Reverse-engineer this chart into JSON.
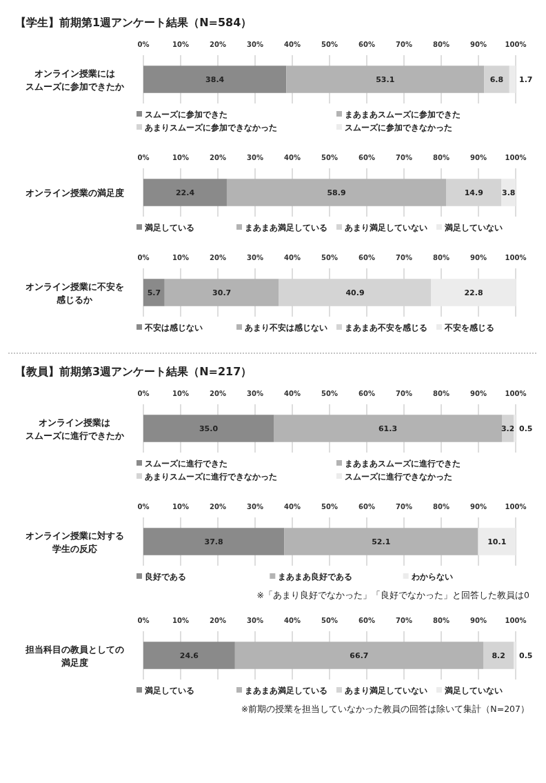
{
  "chart_data": [
    {
      "type": "bar",
      "orientation": "horizontal",
      "stacked": true,
      "title": "【学生】前期第1週アンケート結果（N=584）",
      "categories": [
        "オンライン授業にはスムーズに参加できたか"
      ],
      "xlim": [
        0,
        100
      ],
      "xticks": [
        {
          "value": 0,
          "label": "0%"
        },
        {
          "value": 10,
          "label": "10%"
        },
        {
          "value": 20,
          "label": "20%"
        },
        {
          "value": 30,
          "label": "30%"
        },
        {
          "value": 40,
          "label": "40%"
        },
        {
          "value": 50,
          "label": "50%"
        },
        {
          "value": 60,
          "label": "60%"
        },
        {
          "value": 70,
          "label": "70%"
        },
        {
          "value": 80,
          "label": "80%"
        },
        {
          "value": 90,
          "label": "90%"
        },
        {
          "value": 100,
          "label": "100%"
        }
      ],
      "grid": "x",
      "legend": "bottom",
      "series": [
        {
          "name": "スムーズに参加できた",
          "color": "#8a8a8a",
          "values": [
            38.4
          ],
          "value_labels": [
            "38.4"
          ]
        },
        {
          "name": "まあまあスムーズに参加できた",
          "color": "#b3b3b3",
          "values": [
            53.1
          ],
          "value_labels": [
            "53.1"
          ]
        },
        {
          "name": "あまりスムーズに参加できなかった",
          "color": "#d4d4d4",
          "values": [
            6.8
          ],
          "value_labels": [
            "6.8"
          ]
        },
        {
          "name": "スムーズに参加できなかった",
          "color": "#ececec",
          "values": [
            1.7
          ],
          "value_labels": [
            "1.7"
          ]
        }
      ]
    },
    {
      "type": "bar",
      "orientation": "horizontal",
      "stacked": true,
      "categories": [
        "オンライン授業の満足度"
      ],
      "xlim": [
        0,
        100
      ],
      "xticks": [
        {
          "value": 0,
          "label": "0%"
        },
        {
          "value": 10,
          "label": "10%"
        },
        {
          "value": 20,
          "label": "20%"
        },
        {
          "value": 30,
          "label": "30%"
        },
        {
          "value": 40,
          "label": "40%"
        },
        {
          "value": 50,
          "label": "50%"
        },
        {
          "value": 60,
          "label": "60%"
        },
        {
          "value": 70,
          "label": "70%"
        },
        {
          "value": 80,
          "label": "80%"
        },
        {
          "value": 90,
          "label": "90%"
        },
        {
          "value": 100,
          "label": "100%"
        }
      ],
      "grid": "x",
      "legend": "bottom",
      "series": [
        {
          "name": "満足している",
          "color": "#8a8a8a",
          "values": [
            22.4
          ],
          "value_labels": [
            "22.4"
          ]
        },
        {
          "name": "まあまあ満足している",
          "color": "#b3b3b3",
          "values": [
            58.9
          ],
          "value_labels": [
            "58.9"
          ]
        },
        {
          "name": "あまり満足していない",
          "color": "#d4d4d4",
          "values": [
            14.9
          ],
          "value_labels": [
            "14.9"
          ]
        },
        {
          "name": "満足していない",
          "color": "#ececec",
          "values": [
            3.8
          ],
          "value_labels": [
            "3.8"
          ]
        }
      ]
    },
    {
      "type": "bar",
      "orientation": "horizontal",
      "stacked": true,
      "categories": [
        "オンライン授業に不安を感じるか"
      ],
      "xlim": [
        0,
        100
      ],
      "xticks": [
        {
          "value": 0,
          "label": "0%"
        },
        {
          "value": 10,
          "label": "10%"
        },
        {
          "value": 20,
          "label": "20%"
        },
        {
          "value": 30,
          "label": "30%"
        },
        {
          "value": 40,
          "label": "40%"
        },
        {
          "value": 50,
          "label": "50%"
        },
        {
          "value": 60,
          "label": "60%"
        },
        {
          "value": 70,
          "label": "70%"
        },
        {
          "value": 80,
          "label": "80%"
        },
        {
          "value": 90,
          "label": "90%"
        },
        {
          "value": 100,
          "label": "100%"
        }
      ],
      "grid": "x",
      "legend": "bottom",
      "series": [
        {
          "name": "不安は感じない",
          "color": "#8a8a8a",
          "values": [
            5.7
          ],
          "value_labels": [
            "5.7"
          ]
        },
        {
          "name": "あまり不安は感じない",
          "color": "#b3b3b3",
          "values": [
            30.7
          ],
          "value_labels": [
            "30.7"
          ]
        },
        {
          "name": "まあまあ不安を感じる",
          "color": "#d4d4d4",
          "values": [
            40.9
          ],
          "value_labels": [
            "40.9"
          ]
        },
        {
          "name": "不安を感じる",
          "color": "#ececec",
          "values": [
            22.8
          ],
          "value_labels": [
            "22.8"
          ]
        }
      ]
    },
    {
      "type": "bar",
      "orientation": "horizontal",
      "stacked": true,
      "title": "【教員】前期第3週アンケート結果（N=217）",
      "categories": [
        "オンライン授業はスムーズに進行できたか"
      ],
      "xlim": [
        0,
        100
      ],
      "xticks": [
        {
          "value": 0,
          "label": "0%"
        },
        {
          "value": 10,
          "label": "10%"
        },
        {
          "value": 20,
          "label": "20%"
        },
        {
          "value": 30,
          "label": "30%"
        },
        {
          "value": 40,
          "label": "40%"
        },
        {
          "value": 50,
          "label": "50%"
        },
        {
          "value": 60,
          "label": "60%"
        },
        {
          "value": 70,
          "label": "70%"
        },
        {
          "value": 80,
          "label": "80%"
        },
        {
          "value": 90,
          "label": "90%"
        },
        {
          "value": 100,
          "label": "100%"
        }
      ],
      "grid": "x",
      "legend": "bottom",
      "series": [
        {
          "name": "スムーズに進行できた",
          "color": "#8a8a8a",
          "values": [
            35.0
          ],
          "value_labels": [
            "35.0"
          ]
        },
        {
          "name": "まあまあスムーズに進行できた",
          "color": "#b3b3b3",
          "values": [
            61.3
          ],
          "value_labels": [
            "61.3"
          ]
        },
        {
          "name": "あまりスムーズに進行できなかった",
          "color": "#d4d4d4",
          "values": [
            3.2
          ],
          "value_labels": [
            "3.2"
          ]
        },
        {
          "name": "スムーズに進行できなかった",
          "color": "#ececec",
          "values": [
            0.5
          ],
          "value_labels": [
            "0.5"
          ]
        }
      ]
    },
    {
      "type": "bar",
      "orientation": "horizontal",
      "stacked": true,
      "categories": [
        "オンライン授業に対する学生の反応"
      ],
      "xlim": [
        0,
        100
      ],
      "xticks": [
        {
          "value": 0,
          "label": "0%"
        },
        {
          "value": 10,
          "label": "10%"
        },
        {
          "value": 20,
          "label": "20%"
        },
        {
          "value": 30,
          "label": "30%"
        },
        {
          "value": 40,
          "label": "40%"
        },
        {
          "value": 50,
          "label": "50%"
        },
        {
          "value": 60,
          "label": "60%"
        },
        {
          "value": 70,
          "label": "70%"
        },
        {
          "value": 80,
          "label": "80%"
        },
        {
          "value": 90,
          "label": "90%"
        },
        {
          "value": 100,
          "label": "100%"
        }
      ],
      "grid": "x",
      "legend": "bottom",
      "annotations": [
        "※「あまり良好でなかった」「良好でなかった」と回答した教員は0"
      ],
      "series": [
        {
          "name": "良好である",
          "color": "#8a8a8a",
          "values": [
            37.8
          ],
          "value_labels": [
            "37.8"
          ]
        },
        {
          "name": "まあまあ良好である",
          "color": "#b3b3b3",
          "values": [
            52.1
          ],
          "value_labels": [
            "52.1"
          ]
        },
        {
          "name": "わからない",
          "color": "#ececec",
          "values": [
            10.1
          ],
          "value_labels": [
            "10.1"
          ]
        }
      ]
    },
    {
      "type": "bar",
      "orientation": "horizontal",
      "stacked": true,
      "categories": [
        "担当科目の教員としての満足度"
      ],
      "xlim": [
        0,
        100
      ],
      "xticks": [
        {
          "value": 0,
          "label": "0%"
        },
        {
          "value": 10,
          "label": "10%"
        },
        {
          "value": 20,
          "label": "20%"
        },
        {
          "value": 30,
          "label": "30%"
        },
        {
          "value": 40,
          "label": "40%"
        },
        {
          "value": 50,
          "label": "50%"
        },
        {
          "value": 60,
          "label": "60%"
        },
        {
          "value": 70,
          "label": "70%"
        },
        {
          "value": 80,
          "label": "80%"
        },
        {
          "value": 90,
          "label": "90%"
        },
        {
          "value": 100,
          "label": "100%"
        }
      ],
      "grid": "x",
      "legend": "bottom",
      "annotations": [
        "※前期の授業を担当していなかった教員の回答は除いて集計（N=207）"
      ],
      "series": [
        {
          "name": "満足している",
          "color": "#8a8a8a",
          "values": [
            24.6
          ],
          "value_labels": [
            "24.6"
          ]
        },
        {
          "name": "まあまあ満足している",
          "color": "#b3b3b3",
          "values": [
            66.7
          ],
          "value_labels": [
            "66.7"
          ]
        },
        {
          "name": "あまり満足していない",
          "color": "#d4d4d4",
          "values": [
            8.2
          ],
          "value_labels": [
            "8.2"
          ]
        },
        {
          "name": "満足していない",
          "color": "#ececec",
          "values": [
            0.5
          ],
          "value_labels": [
            "0.5"
          ]
        }
      ]
    }
  ]
}
